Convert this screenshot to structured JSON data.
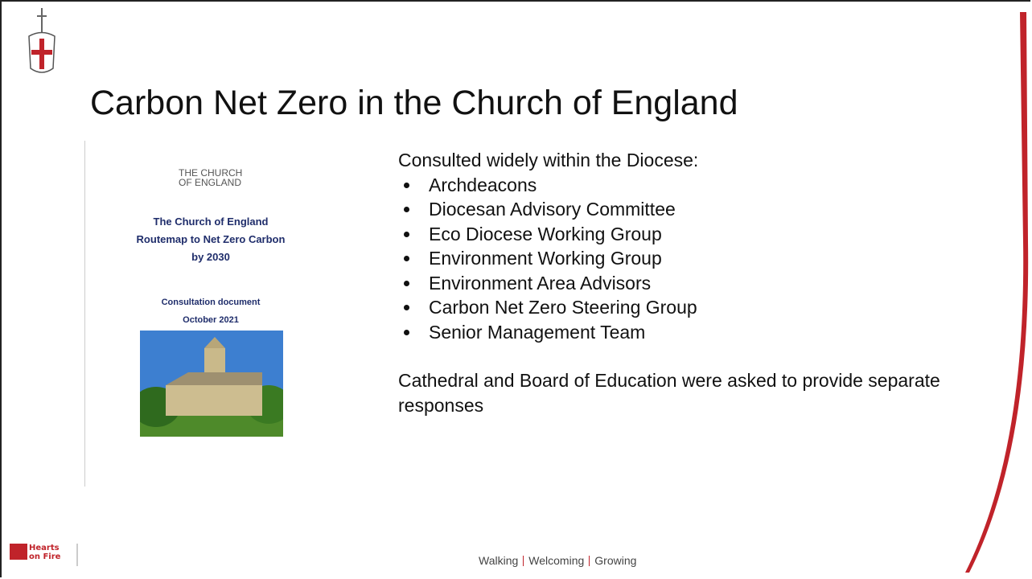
{
  "header": {
    "title": "Carbon Net Zero in the Church of England"
  },
  "document_cover": {
    "logo_lines": [
      "THE CHURCH",
      "OF ENGLAND"
    ],
    "heading": [
      "The Church of England",
      "Routemap to Net Zero Carbon",
      "by 2030"
    ],
    "subheading": [
      "Consultation document",
      "October 2021"
    ]
  },
  "body": {
    "intro": "Consulted widely within the Diocese:",
    "bullets": [
      "Archdeacons",
      "Diocesan Advisory Committee",
      "Eco Diocese Working Group",
      "Environment Working Group",
      "Environment Area Advisors",
      "Carbon Net Zero Steering Group",
      "Senior Management Team"
    ],
    "closing": "Cathedral and Board of Education were asked to provide separate responses"
  },
  "footer": {
    "logo": [
      "Hearts",
      "on Fire"
    ],
    "tagline": [
      "Walking",
      "Welcoming",
      "Growing"
    ]
  }
}
